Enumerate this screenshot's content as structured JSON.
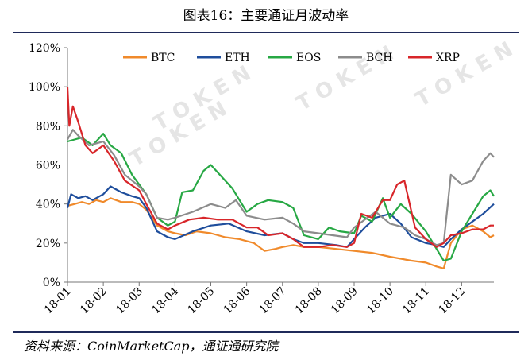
{
  "title": "图表16：主要通证月波动率",
  "source": "资料来源：CoinMarketCap，通证通研究院",
  "chart_data": {
    "type": "line",
    "title": "图表16：主要通证月波动率",
    "xlabel": "",
    "ylabel": "",
    "x_ticks": [
      "18-01",
      "18-02",
      "18-03",
      "18-04",
      "18-05",
      "18-06",
      "18-07",
      "18-08",
      "18-09",
      "18-10",
      "18-11",
      "18-12"
    ],
    "x_range": [
      0,
      11.9
    ],
    "y_ticks": [
      "0%",
      "20%",
      "40%",
      "60%",
      "80%",
      "100%",
      "120%"
    ],
    "ylim": [
      0,
      120
    ],
    "grid": false,
    "legend_position": "top",
    "series": [
      {
        "name": "BTC",
        "color": "#f08a2b",
        "x": [
          0,
          0.2,
          0.4,
          0.6,
          0.8,
          1,
          1.2,
          1.5,
          1.8,
          2,
          2.2,
          2.5,
          2.8,
          3,
          3.3,
          3.6,
          4,
          4.4,
          4.8,
          5.2,
          5.5,
          5.8,
          6,
          6.3,
          6.6,
          7,
          7.5,
          8,
          8.5,
          9,
          9.3,
          9.6,
          10,
          10.3,
          10.5,
          10.7,
          11,
          11.3,
          11.6,
          11.8,
          11.9
        ],
        "y": [
          39,
          40,
          41,
          40,
          42,
          41,
          43,
          41,
          41,
          40,
          37,
          29,
          26,
          25,
          24,
          26,
          25,
          23,
          22,
          20,
          16,
          17,
          18,
          19,
          18,
          18,
          17,
          16,
          15,
          13,
          12,
          11,
          10,
          8,
          7,
          20,
          27,
          29,
          26,
          23,
          24
        ]
      },
      {
        "name": "ETH",
        "color": "#1f4e9c",
        "x": [
          0,
          0.1,
          0.3,
          0.5,
          0.7,
          1,
          1.2,
          1.5,
          1.8,
          2,
          2.2,
          2.5,
          2.8,
          3,
          3.5,
          4,
          4.5,
          5,
          5.5,
          6,
          6.3,
          6.6,
          7,
          7.5,
          7.8,
          8,
          8.3,
          8.6,
          9,
          9.3,
          9.6,
          10,
          10.3,
          10.5,
          10.7,
          11,
          11.3,
          11.6,
          11.9
        ],
        "y": [
          38,
          45,
          43,
          44,
          42,
          45,
          49,
          46,
          44,
          43,
          38,
          26,
          23,
          22,
          26,
          29,
          30,
          26,
          24,
          25,
          22,
          20,
          20,
          19,
          18,
          22,
          28,
          33,
          35,
          30,
          23,
          20,
          19,
          18,
          22,
          27,
          31,
          35,
          40
        ]
      },
      {
        "name": "EOS",
        "color": "#27a844",
        "x": [
          0,
          0.2,
          0.4,
          0.7,
          1,
          1.2,
          1.5,
          1.8,
          2,
          2.2,
          2.5,
          2.8,
          3,
          3.2,
          3.5,
          3.8,
          4,
          4.3,
          4.6,
          5,
          5.3,
          5.6,
          6,
          6.3,
          6.6,
          7,
          7.3,
          7.6,
          8,
          8.2,
          8.5,
          8.8,
          9,
          9.3,
          9.6,
          10,
          10.3,
          10.5,
          10.7,
          11,
          11.3,
          11.6,
          11.8,
          11.9
        ],
        "y": [
          72,
          73,
          74,
          70,
          76,
          70,
          66,
          55,
          50,
          45,
          33,
          29,
          31,
          46,
          47,
          57,
          60,
          54,
          48,
          36,
          40,
          42,
          41,
          38,
          24,
          22,
          28,
          26,
          25,
          34,
          31,
          43,
          33,
          40,
          35,
          26,
          17,
          11,
          12,
          26,
          35,
          44,
          47,
          44
        ]
      },
      {
        "name": "BCH",
        "color": "#8c8c8c",
        "x": [
          0,
          0.15,
          0.3,
          0.6,
          1,
          1.3,
          1.6,
          2,
          2.2,
          2.5,
          2.8,
          3,
          3.5,
          4,
          4.4,
          4.7,
          5,
          5.5,
          6,
          6.3,
          6.6,
          7,
          7.4,
          7.8,
          8,
          8.3,
          8.6,
          9,
          9.4,
          9.7,
          10,
          10.3,
          10.5,
          10.7,
          11,
          11.3,
          11.6,
          11.8,
          11.9
        ],
        "y": [
          73,
          78,
          75,
          70,
          72,
          65,
          55,
          49,
          45,
          33,
          32,
          33,
          36,
          40,
          38,
          42,
          34,
          32,
          33,
          30,
          26,
          25,
          24,
          23,
          28,
          32,
          36,
          30,
          28,
          24,
          22,
          19,
          20,
          55,
          50,
          52,
          62,
          66,
          64
        ]
      },
      {
        "name": "XRP",
        "color": "#d8262a",
        "x": [
          0,
          0.05,
          0.15,
          0.3,
          0.5,
          0.7,
          1,
          1.3,
          1.6,
          2,
          2.2,
          2.5,
          2.8,
          3,
          3.4,
          3.8,
          4.2,
          4.6,
          5,
          5.3,
          5.6,
          6,
          6.3,
          6.6,
          7,
          7.4,
          7.8,
          8,
          8.2,
          8.5,
          8.8,
          9,
          9.2,
          9.4,
          9.7,
          10,
          10.3,
          10.5,
          10.7,
          11,
          11.3,
          11.6,
          11.8,
          11.9
        ],
        "y": [
          100,
          80,
          90,
          82,
          70,
          66,
          70,
          62,
          52,
          47,
          40,
          30,
          27,
          29,
          32,
          33,
          32,
          32,
          28,
          28,
          24,
          25,
          22,
          18,
          18,
          19,
          18,
          20,
          35,
          33,
          42,
          42,
          50,
          52,
          28,
          22,
          18,
          20,
          24,
          25,
          27,
          27,
          29,
          29
        ]
      }
    ]
  }
}
